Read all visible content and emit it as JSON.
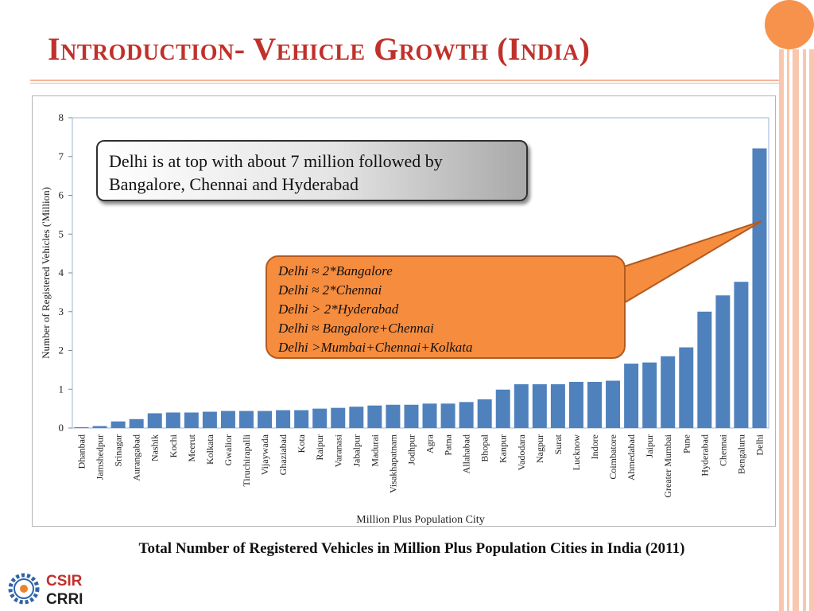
{
  "slide": {
    "title": "Introduction- Vehicle Growth (India)",
    "caption": "Total Number of Registered Vehicles in Million Plus Population Cities in India (2011)",
    "logo": {
      "line1": "CSIR",
      "line2": "CRRI"
    }
  },
  "colors": {
    "title": "#c0312b",
    "bar": "#4f81bd",
    "callout_orange": "#f68c3e",
    "accent": "#f6924b"
  },
  "callouts": {
    "grey_text": "Delhi is at top with about 7 million followed by Bangalore, Chennai and Hyderabad",
    "orange_lines": [
      "Delhi ≈ 2*Bangalore",
      "Delhi ≈ 2*Chennai",
      "Delhi > 2*Hyderabad",
      "Delhi ≈ Bangalore+Chennai",
      "Delhi >Mumbai+Chennai+Kolkata"
    ]
  },
  "chart_data": {
    "type": "bar",
    "title": "",
    "xlabel": "Million Plus Population City",
    "ylabel": "Number of Registered Vehicles ('Million)",
    "ylim": [
      0,
      8
    ],
    "yticks": [
      0,
      1,
      2,
      3,
      4,
      5,
      6,
      7,
      8
    ],
    "grid": false,
    "categories": [
      "Dhanbad",
      "Jamshedpur",
      "Srinagar",
      "Aurangabad",
      "Nashik",
      "Kochi",
      "Meerut",
      "Kolkata",
      "Gwalior",
      "Tiruchirapalli",
      "Vijaywada",
      "Ghaziabad",
      "Kota",
      "Raipur",
      "Varanasi",
      "Jabalpur",
      "Madurai",
      "Visakhapatnam",
      "Jodhpur",
      "Agra",
      "Patna",
      "Allahabad",
      "Bhopal",
      "Kanpur",
      "Vadodara",
      "Nagpur",
      "Surat",
      "Lucknow",
      "Indore",
      "Coimbatore",
      "Ahmedabad",
      "Jaipur",
      "Greater Mumbai",
      "Pune",
      "Hyderabad",
      "Chennai",
      "Bengaluru",
      "Delhi"
    ],
    "values": [
      0.02,
      0.05,
      0.17,
      0.23,
      0.38,
      0.4,
      0.4,
      0.42,
      0.44,
      0.44,
      0.44,
      0.46,
      0.46,
      0.5,
      0.52,
      0.55,
      0.58,
      0.6,
      0.6,
      0.63,
      0.63,
      0.67,
      0.74,
      0.99,
      1.13,
      1.13,
      1.13,
      1.19,
      1.19,
      1.22,
      1.66,
      1.69,
      1.85,
      2.08,
      3.0,
      3.42,
      3.77,
      7.21
    ]
  }
}
